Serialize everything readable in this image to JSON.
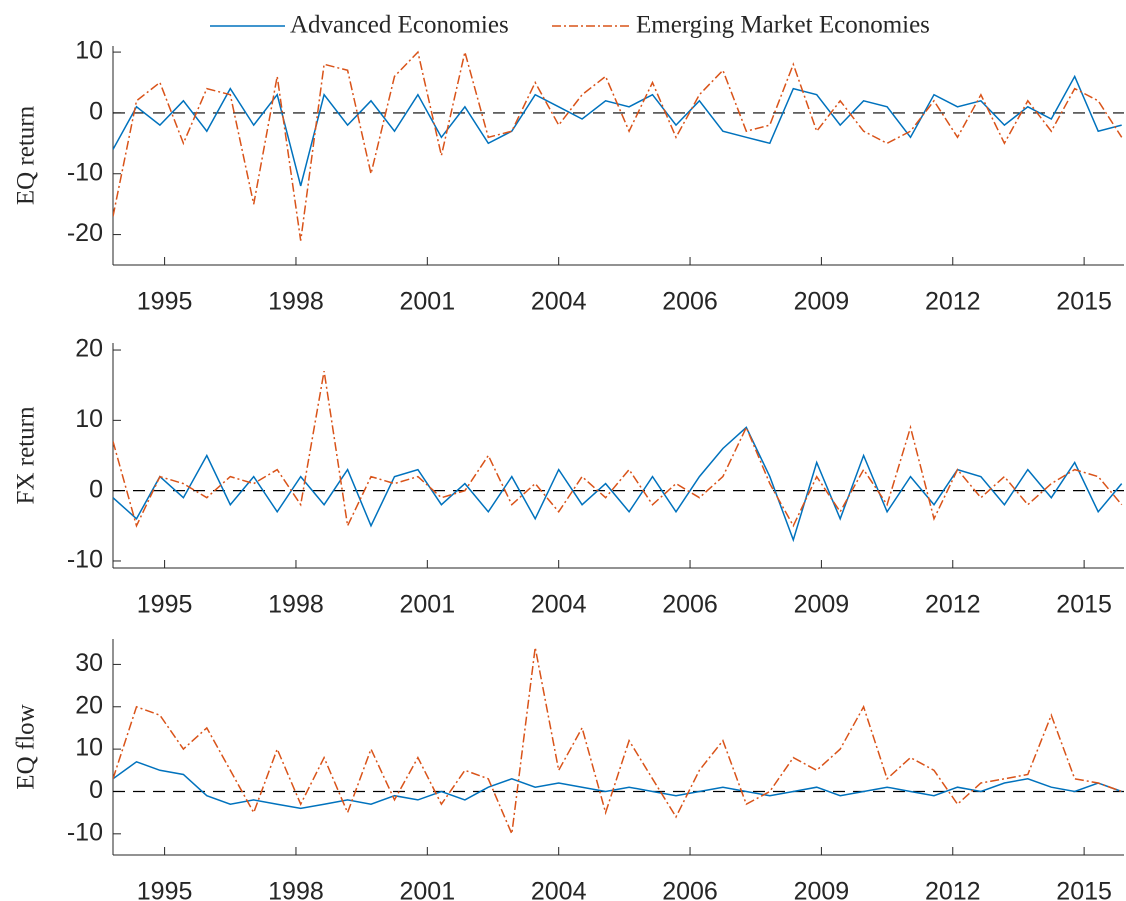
{
  "chart_data": [
    {
      "type": "line",
      "ylabel": "EQ return",
      "xlim": [
        1994.6,
        2016.15
      ],
      "ylim": [
        -25,
        11
      ],
      "yticks": [
        -20,
        -10,
        0,
        10
      ],
      "hline": 0,
      "xticks": [
        {
          "value": 1995.7,
          "label": "1995"
        },
        {
          "value": 1998.5,
          "label": "1998"
        },
        {
          "value": 2001.3,
          "label": "2001"
        },
        {
          "value": 2004.1,
          "label": "2004"
        },
        {
          "value": 2006.9,
          "label": "2006"
        },
        {
          "value": 2009.7,
          "label": "2009"
        },
        {
          "value": 2012.5,
          "label": "2012"
        },
        {
          "value": 2015.3,
          "label": "2015"
        }
      ],
      "x": [
        1994.6,
        1995.1,
        1995.6,
        1996.1,
        1996.6,
        1997.1,
        1997.6,
        1998.1,
        1998.6,
        1999.1,
        1999.6,
        2000.1,
        2000.6,
        2001.1,
        2001.6,
        2002.1,
        2002.6,
        2003.1,
        2003.6,
        2004.1,
        2004.6,
        2005.1,
        2005.6,
        2006.1,
        2006.6,
        2007.1,
        2007.6,
        2008.1,
        2008.6,
        2009.1,
        2009.6,
        2010.1,
        2010.6,
        2011.1,
        2011.6,
        2012.1,
        2012.6,
        2013.1,
        2013.6,
        2014.1,
        2014.6,
        2015.1,
        2015.6,
        2016.1
      ],
      "series": [
        {
          "name": "Advanced Economies",
          "color": "#0072bd",
          "dash": "none",
          "values": [
            -6,
            1,
            -2,
            2,
            -3,
            4,
            -2,
            3,
            -12,
            3,
            -2,
            2,
            -3,
            3,
            -4,
            1,
            -5,
            -3,
            3,
            1,
            -1,
            2,
            1,
            3,
            -2,
            2,
            -3,
            -4,
            -5,
            4,
            3,
            -2,
            2,
            1,
            -4,
            3,
            1,
            2,
            -2,
            1,
            -1,
            6,
            -3,
            -2
          ]
        },
        {
          "name": "Emerging Market Economies",
          "color": "#d95319",
          "dash": "9 3 2 3",
          "values": [
            -17,
            2,
            5,
            -5,
            4,
            3,
            -15,
            6,
            -21,
            8,
            7,
            -10,
            6,
            10,
            -7,
            10,
            -4,
            -3,
            5,
            -2,
            3,
            6,
            -3,
            5,
            -4,
            3,
            7,
            -3,
            -2,
            8,
            -3,
            2,
            -3,
            -5,
            -3,
            2,
            -4,
            3,
            -5,
            2,
            -3,
            4,
            2,
            -4
          ]
        }
      ]
    },
    {
      "type": "line",
      "ylabel": "FX return",
      "xlim": [
        1994.6,
        2016.15
      ],
      "ylim": [
        -11,
        21
      ],
      "yticks": [
        -10,
        0,
        10,
        20
      ],
      "hline": 0,
      "xticks": [
        {
          "value": 1995.7,
          "label": "1995"
        },
        {
          "value": 1998.5,
          "label": "1998"
        },
        {
          "value": 2001.3,
          "label": "2001"
        },
        {
          "value": 2004.1,
          "label": "2004"
        },
        {
          "value": 2006.9,
          "label": "2006"
        },
        {
          "value": 2009.7,
          "label": "2009"
        },
        {
          "value": 2012.5,
          "label": "2012"
        },
        {
          "value": 2015.3,
          "label": "2015"
        }
      ],
      "x": [
        1994.6,
        1995.1,
        1995.6,
        1996.1,
        1996.6,
        1997.1,
        1997.6,
        1998.1,
        1998.6,
        1999.1,
        1999.6,
        2000.1,
        2000.6,
        2001.1,
        2001.6,
        2002.1,
        2002.6,
        2003.1,
        2003.6,
        2004.1,
        2004.6,
        2005.1,
        2005.6,
        2006.1,
        2006.6,
        2007.1,
        2007.6,
        2008.1,
        2008.6,
        2009.1,
        2009.6,
        2010.1,
        2010.6,
        2011.1,
        2011.6,
        2012.1,
        2012.6,
        2013.1,
        2013.6,
        2014.1,
        2014.6,
        2015.1,
        2015.6,
        2016.1
      ],
      "series": [
        {
          "color": "#0072bd",
          "dash": "none",
          "values": [
            -1,
            -4,
            2,
            -1,
            5,
            -2,
            2,
            -3,
            2,
            -2,
            3,
            -5,
            2,
            3,
            -2,
            1,
            -3,
            2,
            -4,
            3,
            -2,
            1,
            -3,
            2,
            -3,
            2,
            6,
            9,
            2,
            -7,
            4,
            -4,
            5,
            -3,
            2,
            -2,
            3,
            2,
            -2,
            3,
            -1,
            4,
            -3,
            1
          ]
        },
        {
          "color": "#d95319",
          "dash": "9 3 2 3",
          "values": [
            7,
            -5,
            2,
            1,
            -1,
            2,
            1,
            3,
            -2,
            17,
            -5,
            2,
            1,
            2,
            -1,
            0,
            5,
            -2,
            1,
            -3,
            2,
            -1,
            3,
            -2,
            1,
            -1,
            2,
            9,
            1,
            -5,
            2,
            -3,
            3,
            -2,
            9,
            -4,
            3,
            -1,
            2,
            -2,
            1,
            3,
            2,
            -2
          ]
        }
      ]
    },
    {
      "type": "line",
      "ylabel": "EQ flow",
      "xlim": [
        1994.6,
        2016.15
      ],
      "ylim": [
        -15,
        36
      ],
      "yticks": [
        -10,
        0,
        10,
        20,
        30
      ],
      "hline": 0,
      "xticks": [
        {
          "value": 1995.7,
          "label": "1995"
        },
        {
          "value": 1998.5,
          "label": "1998"
        },
        {
          "value": 2001.3,
          "label": "2001"
        },
        {
          "value": 2004.1,
          "label": "2004"
        },
        {
          "value": 2006.9,
          "label": "2006"
        },
        {
          "value": 2009.7,
          "label": "2009"
        },
        {
          "value": 2012.5,
          "label": "2012"
        },
        {
          "value": 2015.3,
          "label": "2015"
        }
      ],
      "x": [
        1994.6,
        1995.1,
        1995.6,
        1996.1,
        1996.6,
        1997.1,
        1997.6,
        1998.1,
        1998.6,
        1999.1,
        1999.6,
        2000.1,
        2000.6,
        2001.1,
        2001.6,
        2002.1,
        2002.6,
        2003.1,
        2003.6,
        2004.1,
        2004.6,
        2005.1,
        2005.6,
        2006.1,
        2006.6,
        2007.1,
        2007.6,
        2008.1,
        2008.6,
        2009.1,
        2009.6,
        2010.1,
        2010.6,
        2011.1,
        2011.6,
        2012.1,
        2012.6,
        2013.1,
        2013.6,
        2014.1,
        2014.6,
        2015.1,
        2015.6,
        2016.1
      ],
      "series": [
        {
          "color": "#0072bd",
          "dash": "none",
          "values": [
            3,
            7,
            5,
            4,
            -1,
            -3,
            -2,
            -3,
            -4,
            -3,
            -2,
            -3,
            -1,
            -2,
            0,
            -2,
            1,
            3,
            1,
            2,
            1,
            0,
            1,
            0,
            -1,
            0,
            1,
            0,
            -1,
            0,
            1,
            -1,
            0,
            1,
            0,
            -1,
            1,
            0,
            2,
            3,
            1,
            0,
            2,
            0
          ]
        },
        {
          "color": "#d95319",
          "dash": "9 3 2 3",
          "values": [
            3,
            20,
            18,
            10,
            15,
            5,
            -5,
            10,
            -3,
            8,
            -5,
            10,
            -2,
            8,
            -3,
            5,
            3,
            -10,
            34,
            5,
            15,
            -5,
            12,
            3,
            -6,
            5,
            12,
            -3,
            0,
            8,
            5,
            10,
            20,
            3,
            8,
            5,
            -3,
            2,
            3,
            4,
            18,
            3,
            2,
            0
          ]
        }
      ]
    }
  ]
}
